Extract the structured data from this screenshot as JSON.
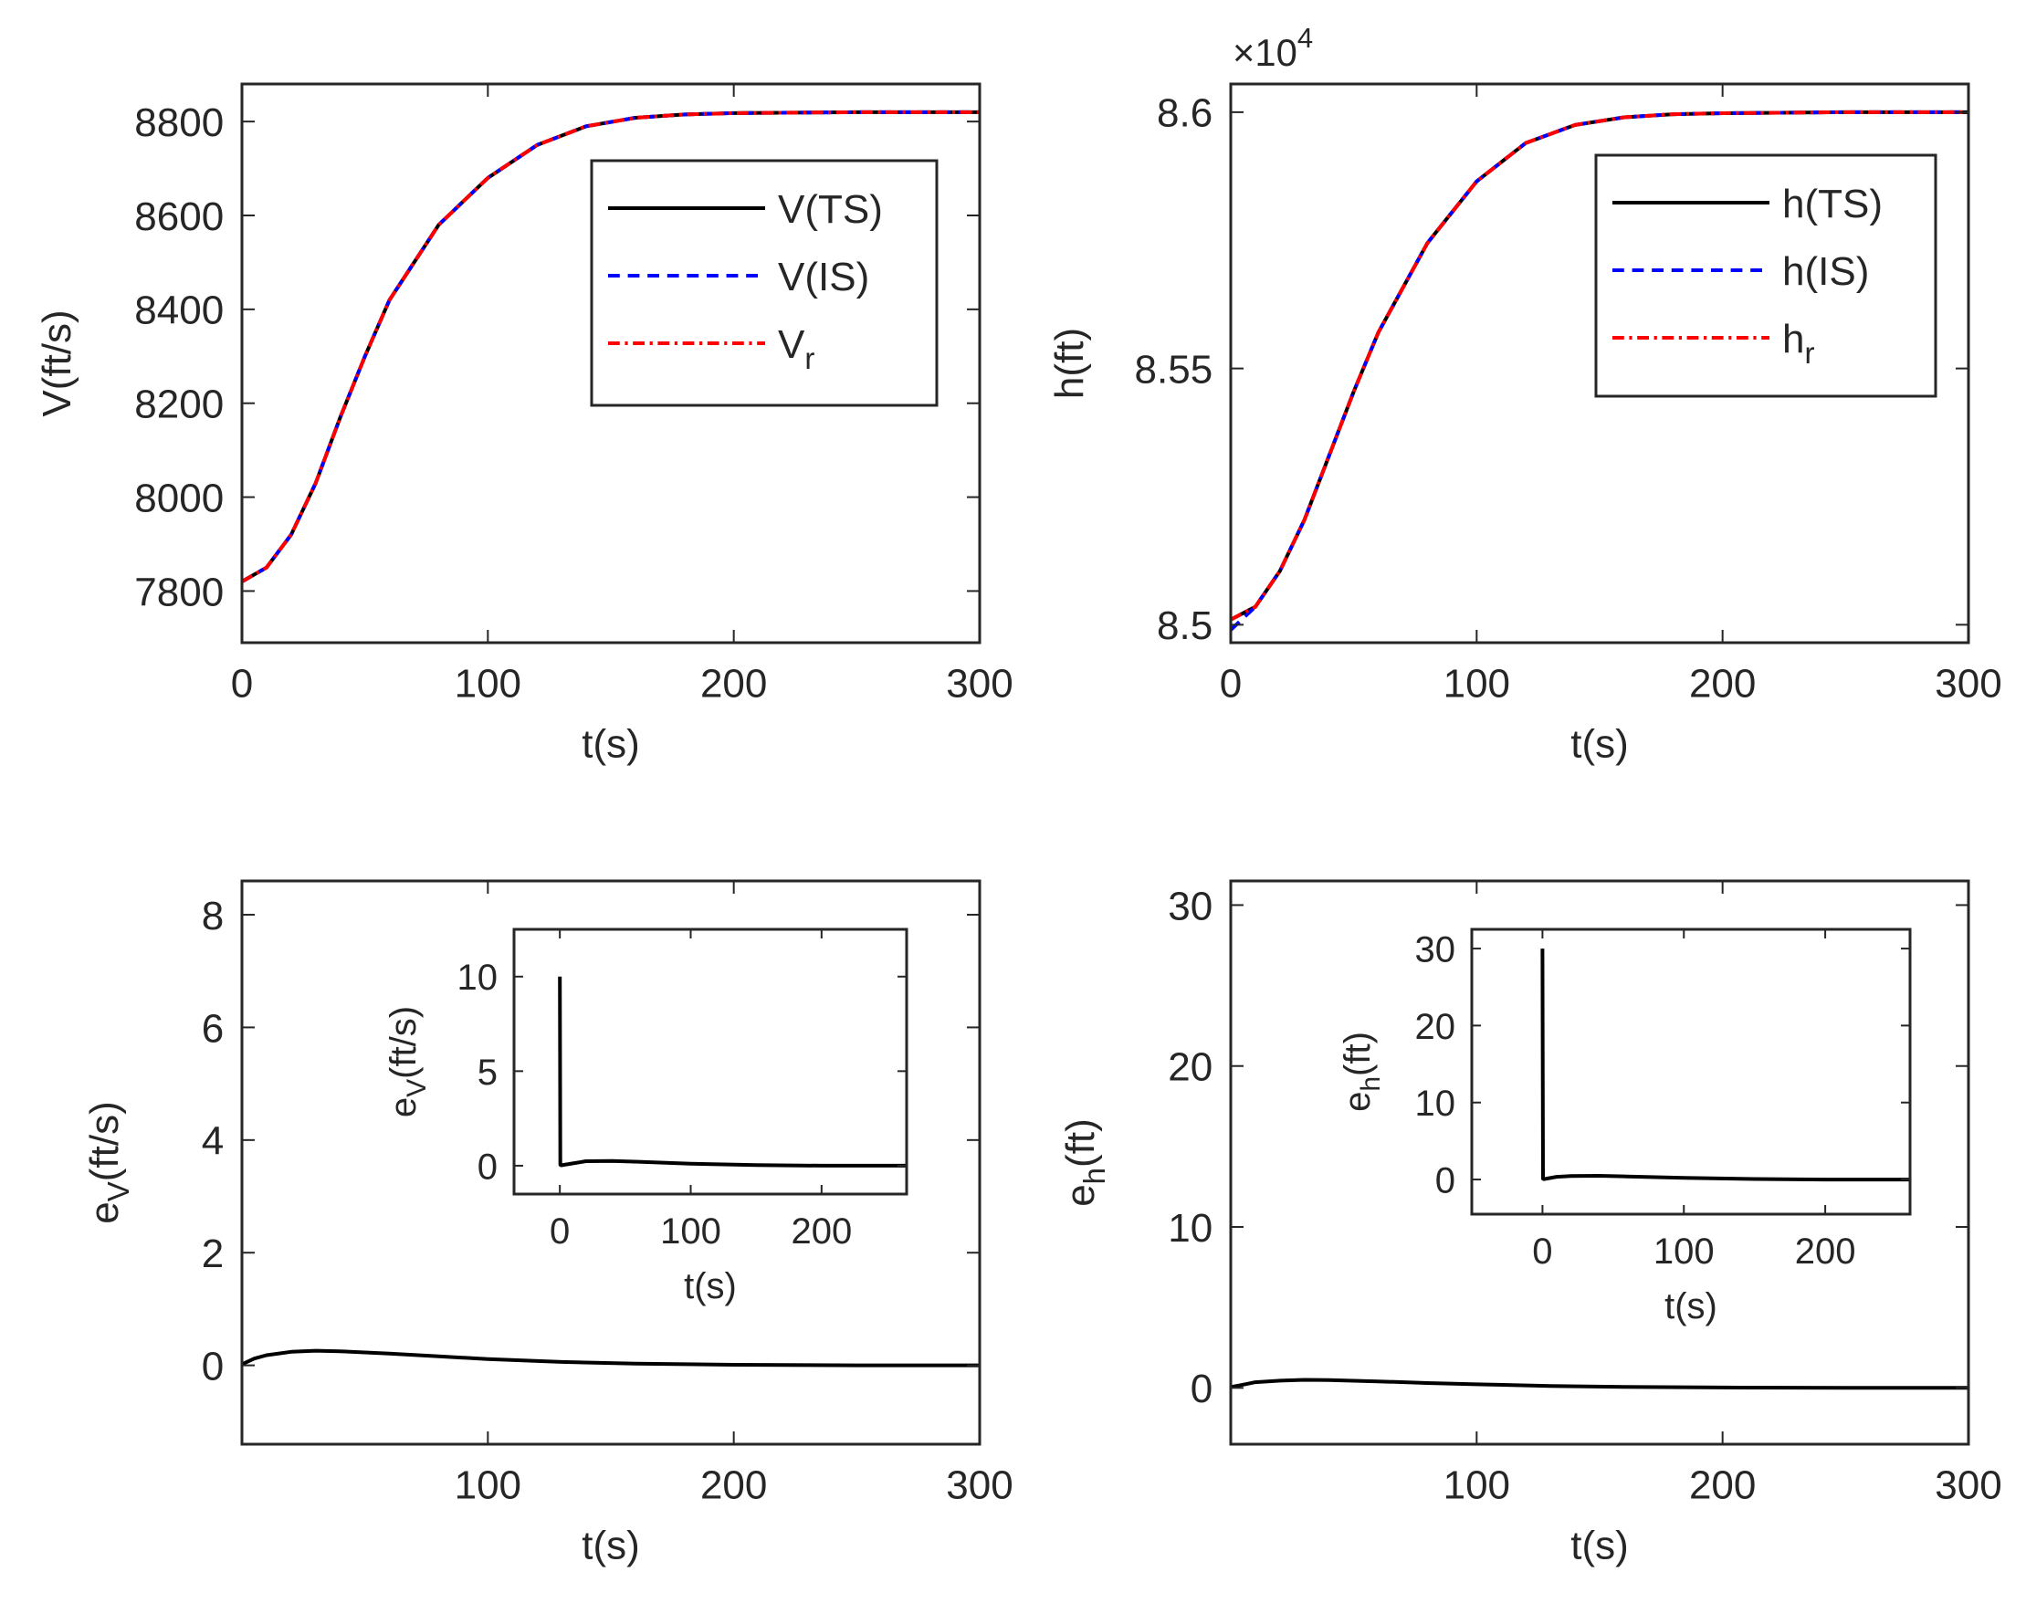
{
  "colors": {
    "ts": "#000000",
    "is": "#0000ff",
    "ref": "#ff0000",
    "axis": "#262626"
  },
  "chart_data": [
    {
      "id": "velocity",
      "type": "line",
      "title": "",
      "xlabel": "t(s)",
      "ylabel": "V(ft/s)",
      "xlim": [
        0,
        300
      ],
      "ylim": [
        7690,
        8880
      ],
      "xticks": [
        0,
        100,
        200,
        300
      ],
      "xtick_labels": [
        "0",
        "100",
        "200",
        "300"
      ],
      "yticks": [
        7800,
        8000,
        8200,
        8400,
        8600,
        8800
      ],
      "ytick_labels": [
        "7800",
        "8000",
        "8200",
        "8400",
        "8600",
        "8800"
      ],
      "legend": {
        "placement": "top-right",
        "entries": [
          "V(TS)",
          "V(IS)",
          "V_r"
        ]
      },
      "series": [
        {
          "name": "V(TS)",
          "style": "solid",
          "color": "#000000",
          "x": [
            0,
            10,
            20,
            30,
            40,
            50,
            60,
            80,
            100,
            120,
            140,
            160,
            180,
            200,
            250,
            300
          ],
          "y": [
            7820,
            7850,
            7920,
            8030,
            8170,
            8300,
            8420,
            8580,
            8680,
            8750,
            8790,
            8808,
            8815,
            8818,
            8820,
            8820
          ]
        },
        {
          "name": "V(IS)",
          "style": "dashed",
          "color": "#0000ff",
          "x": [
            0,
            10,
            20,
            30,
            40,
            50,
            60,
            80,
            100,
            120,
            140,
            160,
            180,
            200,
            250,
            300
          ],
          "y": [
            7820,
            7850,
            7920,
            8030,
            8170,
            8300,
            8420,
            8580,
            8680,
            8750,
            8790,
            8808,
            8815,
            8818,
            8820,
            8820
          ]
        },
        {
          "name": "V_r",
          "style": "dashdot",
          "color": "#ff0000",
          "x": [
            0,
            10,
            20,
            30,
            40,
            50,
            60,
            80,
            100,
            120,
            140,
            160,
            180,
            200,
            250,
            300
          ],
          "y": [
            7820,
            7850,
            7920,
            8030,
            8170,
            8300,
            8420,
            8580,
            8680,
            8750,
            8790,
            8808,
            8815,
            8818,
            8820,
            8820
          ]
        }
      ]
    },
    {
      "id": "altitude",
      "type": "line",
      "title": "",
      "xlabel": "t(s)",
      "ylabel": "h(ft)",
      "exponent_label": "×10",
      "exponent": "4",
      "xlim": [
        0,
        300
      ],
      "ylim": [
        8.4965,
        8.6055
      ],
      "xticks": [
        0,
        100,
        200,
        300
      ],
      "xtick_labels": [
        "0",
        "100",
        "200",
        "300"
      ],
      "yticks": [
        8.5,
        8.55,
        8.6
      ],
      "ytick_labels": [
        "8.5",
        "8.55",
        "8.6"
      ],
      "legend": {
        "placement": "top-right",
        "entries": [
          "h(TS)",
          "h(IS)",
          "h_r"
        ]
      },
      "series": [
        {
          "name": "h(TS)",
          "style": "solid",
          "color": "#000000",
          "x": [
            0,
            10,
            20,
            30,
            40,
            50,
            60,
            80,
            100,
            120,
            140,
            160,
            180,
            200,
            250,
            300
          ],
          "y": [
            8.501,
            8.5035,
            8.5105,
            8.5205,
            8.533,
            8.5455,
            8.557,
            8.5745,
            8.5865,
            8.594,
            8.5975,
            8.599,
            8.5996,
            8.5998,
            8.6,
            8.6
          ]
        },
        {
          "name": "h(IS)",
          "style": "dashed",
          "color": "#0000ff",
          "x": [
            0,
            10,
            20,
            30,
            40,
            50,
            60,
            80,
            100,
            120,
            140,
            160,
            180,
            200,
            250,
            300
          ],
          "y": [
            8.499,
            8.5035,
            8.5105,
            8.5205,
            8.533,
            8.5455,
            8.557,
            8.5745,
            8.5865,
            8.594,
            8.5975,
            8.599,
            8.5996,
            8.5998,
            8.6,
            8.6
          ]
        },
        {
          "name": "h_r",
          "style": "dashdot",
          "color": "#ff0000",
          "x": [
            0,
            10,
            20,
            30,
            40,
            50,
            60,
            80,
            100,
            120,
            140,
            160,
            180,
            200,
            250,
            300
          ],
          "y": [
            8.501,
            8.5035,
            8.5105,
            8.5205,
            8.533,
            8.5455,
            8.557,
            8.5745,
            8.5865,
            8.594,
            8.5975,
            8.599,
            8.5996,
            8.5998,
            8.6,
            8.6
          ]
        }
      ]
    },
    {
      "id": "velocity-error",
      "type": "line",
      "title": "",
      "xlabel": "t(s)",
      "ylabel": "e_V(ft/s)",
      "xlim": [
        0,
        300
      ],
      "ylim": [
        -1.4,
        8.6
      ],
      "xticks": [
        100,
        200,
        300
      ],
      "xtick_labels": [
        "100",
        "200",
        "300"
      ],
      "yticks": [
        0,
        2,
        4,
        6,
        8
      ],
      "ytick_labels": [
        "0",
        "2",
        "4",
        "6",
        "8"
      ],
      "series": [
        {
          "name": "e_V",
          "style": "solid",
          "color": "#000000",
          "x": [
            0,
            5,
            10,
            20,
            30,
            40,
            60,
            80,
            100,
            130,
            160,
            200,
            250,
            300
          ],
          "y": [
            0.02,
            0.12,
            0.18,
            0.24,
            0.26,
            0.25,
            0.21,
            0.16,
            0.11,
            0.06,
            0.03,
            0.01,
            0.0,
            0.0
          ]
        }
      ],
      "inset": {
        "xlabel": "t(s)",
        "ylabel": "e_V(ft/s)",
        "xlim": [
          -35,
          265
        ],
        "ylim": [
          -1.5,
          12.5
        ],
        "xticks": [
          0,
          100,
          200
        ],
        "xtick_labels": [
          "0",
          "100",
          "200"
        ],
        "yticks": [
          0,
          5,
          10
        ],
        "ytick_labels": [
          "0",
          "5",
          "10"
        ],
        "series": [
          {
            "name": "e_V",
            "style": "solid",
            "color": "#000000",
            "x": [
              0,
              0.4,
              1,
              10,
              20,
              40,
              60,
              100,
              150,
              200,
              265
            ],
            "y": [
              10,
              0.05,
              0.02,
              0.12,
              0.24,
              0.25,
              0.21,
              0.11,
              0.03,
              0.0,
              0.0
            ]
          }
        ]
      }
    },
    {
      "id": "altitude-error",
      "type": "line",
      "title": "",
      "xlabel": "t(s)",
      "ylabel": "e_h(ft)",
      "xlim": [
        0,
        300
      ],
      "ylim": [
        -3.5,
        31.5
      ],
      "xticks": [
        100,
        200,
        300
      ],
      "xtick_labels": [
        "100",
        "200",
        "300"
      ],
      "yticks": [
        0,
        10,
        20,
        30
      ],
      "ytick_labels": [
        "0",
        "10",
        "20",
        "30"
      ],
      "series": [
        {
          "name": "e_h",
          "style": "solid",
          "color": "#000000",
          "x": [
            0,
            5,
            10,
            20,
            30,
            40,
            60,
            80,
            100,
            130,
            160,
            200,
            250,
            300
          ],
          "y": [
            0.05,
            0.2,
            0.35,
            0.45,
            0.5,
            0.48,
            0.4,
            0.3,
            0.22,
            0.12,
            0.06,
            0.02,
            0.0,
            0.0
          ]
        }
      ],
      "inset": {
        "xlabel": "t(s)",
        "ylabel": "e_h(ft)",
        "xlim": [
          -50,
          260
        ],
        "ylim": [
          -4.5,
          32.5
        ],
        "xticks": [
          0,
          100,
          200
        ],
        "xtick_labels": [
          "0",
          "100",
          "200"
        ],
        "yticks": [
          0,
          10,
          20,
          30
        ],
        "ytick_labels": [
          "0",
          "10",
          "20",
          "30"
        ],
        "series": [
          {
            "name": "e_h",
            "style": "solid",
            "color": "#000000",
            "x": [
              0,
              0.4,
              1,
              10,
              20,
              40,
              60,
              100,
              150,
              200,
              260
            ],
            "y": [
              30,
              0.1,
              0.05,
              0.35,
              0.45,
              0.48,
              0.4,
              0.22,
              0.06,
              0.0,
              0.0
            ]
          }
        ]
      }
    }
  ]
}
